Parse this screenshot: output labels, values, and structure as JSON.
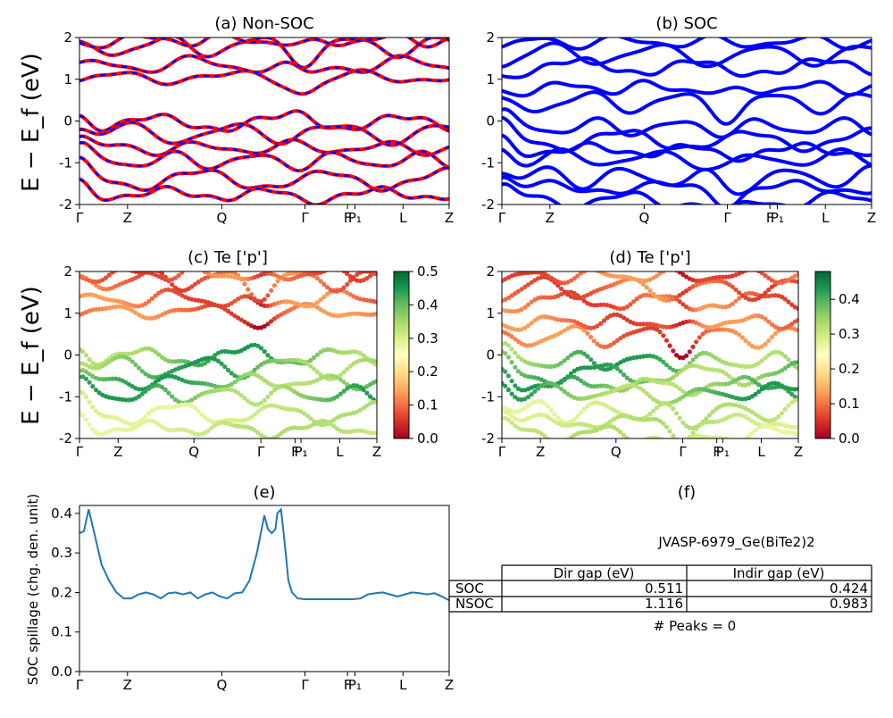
{
  "band_ticks": [
    "Γ",
    "Z",
    "Q",
    "Γ",
    "F",
    "P₁",
    "L",
    "Z"
  ],
  "spill_ticks": [
    "Γ",
    "Z",
    "Q",
    "Γ",
    "F",
    "P₁",
    "L",
    "Z"
  ],
  "energy_ylabel": "E − E_f (eV)",
  "spill_ylabel": "SOC spillage (chg. den. unit)",
  "panels": {
    "a": "(a) Non-SOC",
    "b": "(b) SOC",
    "c": "(c)  Te ['p']",
    "d": "(d) Te ['p']",
    "e": "(e)",
    "f": "(f)"
  },
  "colorbar_c": {
    "ticks": [
      "0.0",
      "0.1",
      "0.2",
      "0.3",
      "0.4",
      "0.5"
    ],
    "min": 0,
    "max": 0.5
  },
  "colorbar_d": {
    "ticks": [
      "0.0",
      "0.1",
      "0.2",
      "0.3",
      "0.4"
    ],
    "min": 0,
    "max": 0.48
  },
  "colors": {
    "soc": "#0000ff",
    "nonsoc": "#ff0000",
    "spill": "#1f77b4"
  },
  "chart_data": [
    {
      "type": "line",
      "id": "a",
      "title": "(a) Non-SOC",
      "ylabel": "E − E_f (eV)",
      "ylim": [
        -2,
        2
      ],
      "yticks": [
        -2,
        -1,
        0,
        1,
        2
      ],
      "xticks": [
        "Γ",
        "Z",
        "Q",
        "Γ",
        "F",
        "P₁",
        "L",
        "Z"
      ],
      "series": [
        {
          "bands_conduction_start": [
            1.05,
            1.35,
            1.8,
            1.95
          ],
          "bands_valence_top": [
            -0.05,
            -0.3,
            -0.65,
            -0.95,
            -1.4,
            -1.75
          ]
        }
      ]
    },
    {
      "type": "line",
      "id": "b",
      "title": "(b) SOC",
      "ylim": [
        -2,
        2
      ],
      "yticks": [
        -2,
        -1,
        0,
        1,
        2
      ],
      "xticks": [
        "Γ",
        "Z",
        "Q",
        "Γ",
        "F",
        "P₁",
        "L",
        "Z"
      ],
      "series": [
        {
          "bands_conduction_start": [
            0.45,
            0.8,
            1.3,
            1.6,
            1.9
          ],
          "bands_valence_top": [
            -0.15,
            -0.45,
            -0.7,
            -0.9,
            -1.35,
            -1.6,
            -1.9
          ]
        }
      ]
    },
    {
      "type": "scatter",
      "id": "c",
      "title": "(c)  Te ['p']",
      "ylim": [
        -2,
        2
      ],
      "yticks": [
        -2,
        -1,
        0,
        1,
        2
      ],
      "xticks": [
        "Γ",
        "Z",
        "Q",
        "Γ",
        "F",
        "P₁",
        "L",
        "Z"
      ],
      "colorbar_range": [
        0,
        0.5
      ]
    },
    {
      "type": "scatter",
      "id": "d",
      "title": "(d) Te ['p']",
      "ylim": [
        -2,
        2
      ],
      "yticks": [
        -2,
        -1,
        0,
        1,
        2
      ],
      "xticks": [
        "Γ",
        "Z",
        "Q",
        "Γ",
        "F",
        "P₁",
        "L",
        "Z"
      ],
      "colorbar_range": [
        0,
        0.48
      ]
    },
    {
      "type": "line",
      "id": "e",
      "title": "(e)",
      "ylabel": "SOC spillage (chg. den. unit)",
      "ylim": [
        0,
        0.42
      ],
      "yticks": [
        0.0,
        0.1,
        0.2,
        0.3,
        0.4
      ],
      "xticks": [
        "Γ",
        "Z",
        "Q",
        "Γ",
        "F",
        "P₁",
        "L",
        "Z"
      ],
      "x": [
        0,
        0.012,
        0.025,
        0.04,
        0.06,
        0.08,
        0.1,
        0.12,
        0.14,
        0.16,
        0.18,
        0.2,
        0.22,
        0.24,
        0.26,
        0.28,
        0.3,
        0.32,
        0.34,
        0.36,
        0.38,
        0.4,
        0.42,
        0.44,
        0.46,
        0.48,
        0.5,
        0.51,
        0.52,
        0.53,
        0.535,
        0.545,
        0.55,
        0.56,
        0.565,
        0.575,
        0.59,
        0.61,
        0.63,
        0.66,
        0.7,
        0.74,
        0.76,
        0.78,
        0.8,
        0.82,
        0.84,
        0.86,
        0.88,
        0.9,
        0.92,
        0.94,
        0.96,
        0.98,
        1.0
      ],
      "values": [
        0.35,
        0.355,
        0.41,
        0.35,
        0.27,
        0.23,
        0.2,
        0.185,
        0.185,
        0.195,
        0.2,
        0.195,
        0.185,
        0.198,
        0.2,
        0.195,
        0.2,
        0.185,
        0.195,
        0.2,
        0.19,
        0.185,
        0.198,
        0.2,
        0.23,
        0.3,
        0.395,
        0.36,
        0.35,
        0.36,
        0.4,
        0.41,
        0.37,
        0.28,
        0.23,
        0.2,
        0.185,
        0.183,
        0.183,
        0.183,
        0.183,
        0.183,
        0.185,
        0.195,
        0.198,
        0.2,
        0.195,
        0.19,
        0.195,
        0.2,
        0.198,
        0.195,
        0.198,
        0.19,
        0.18
      ]
    },
    {
      "type": "table",
      "id": "f",
      "title": "(f)",
      "caption": "JVASP-6979_Ge(BiTe2)2",
      "columns": [
        "",
        "Dir gap (eV)",
        "Indir gap (eV)"
      ],
      "rows": [
        [
          "SOC",
          "0.511",
          "0.424"
        ],
        [
          "NSOC",
          "1.116",
          "0.983"
        ]
      ],
      "footer": "# Peaks = 0"
    }
  ]
}
